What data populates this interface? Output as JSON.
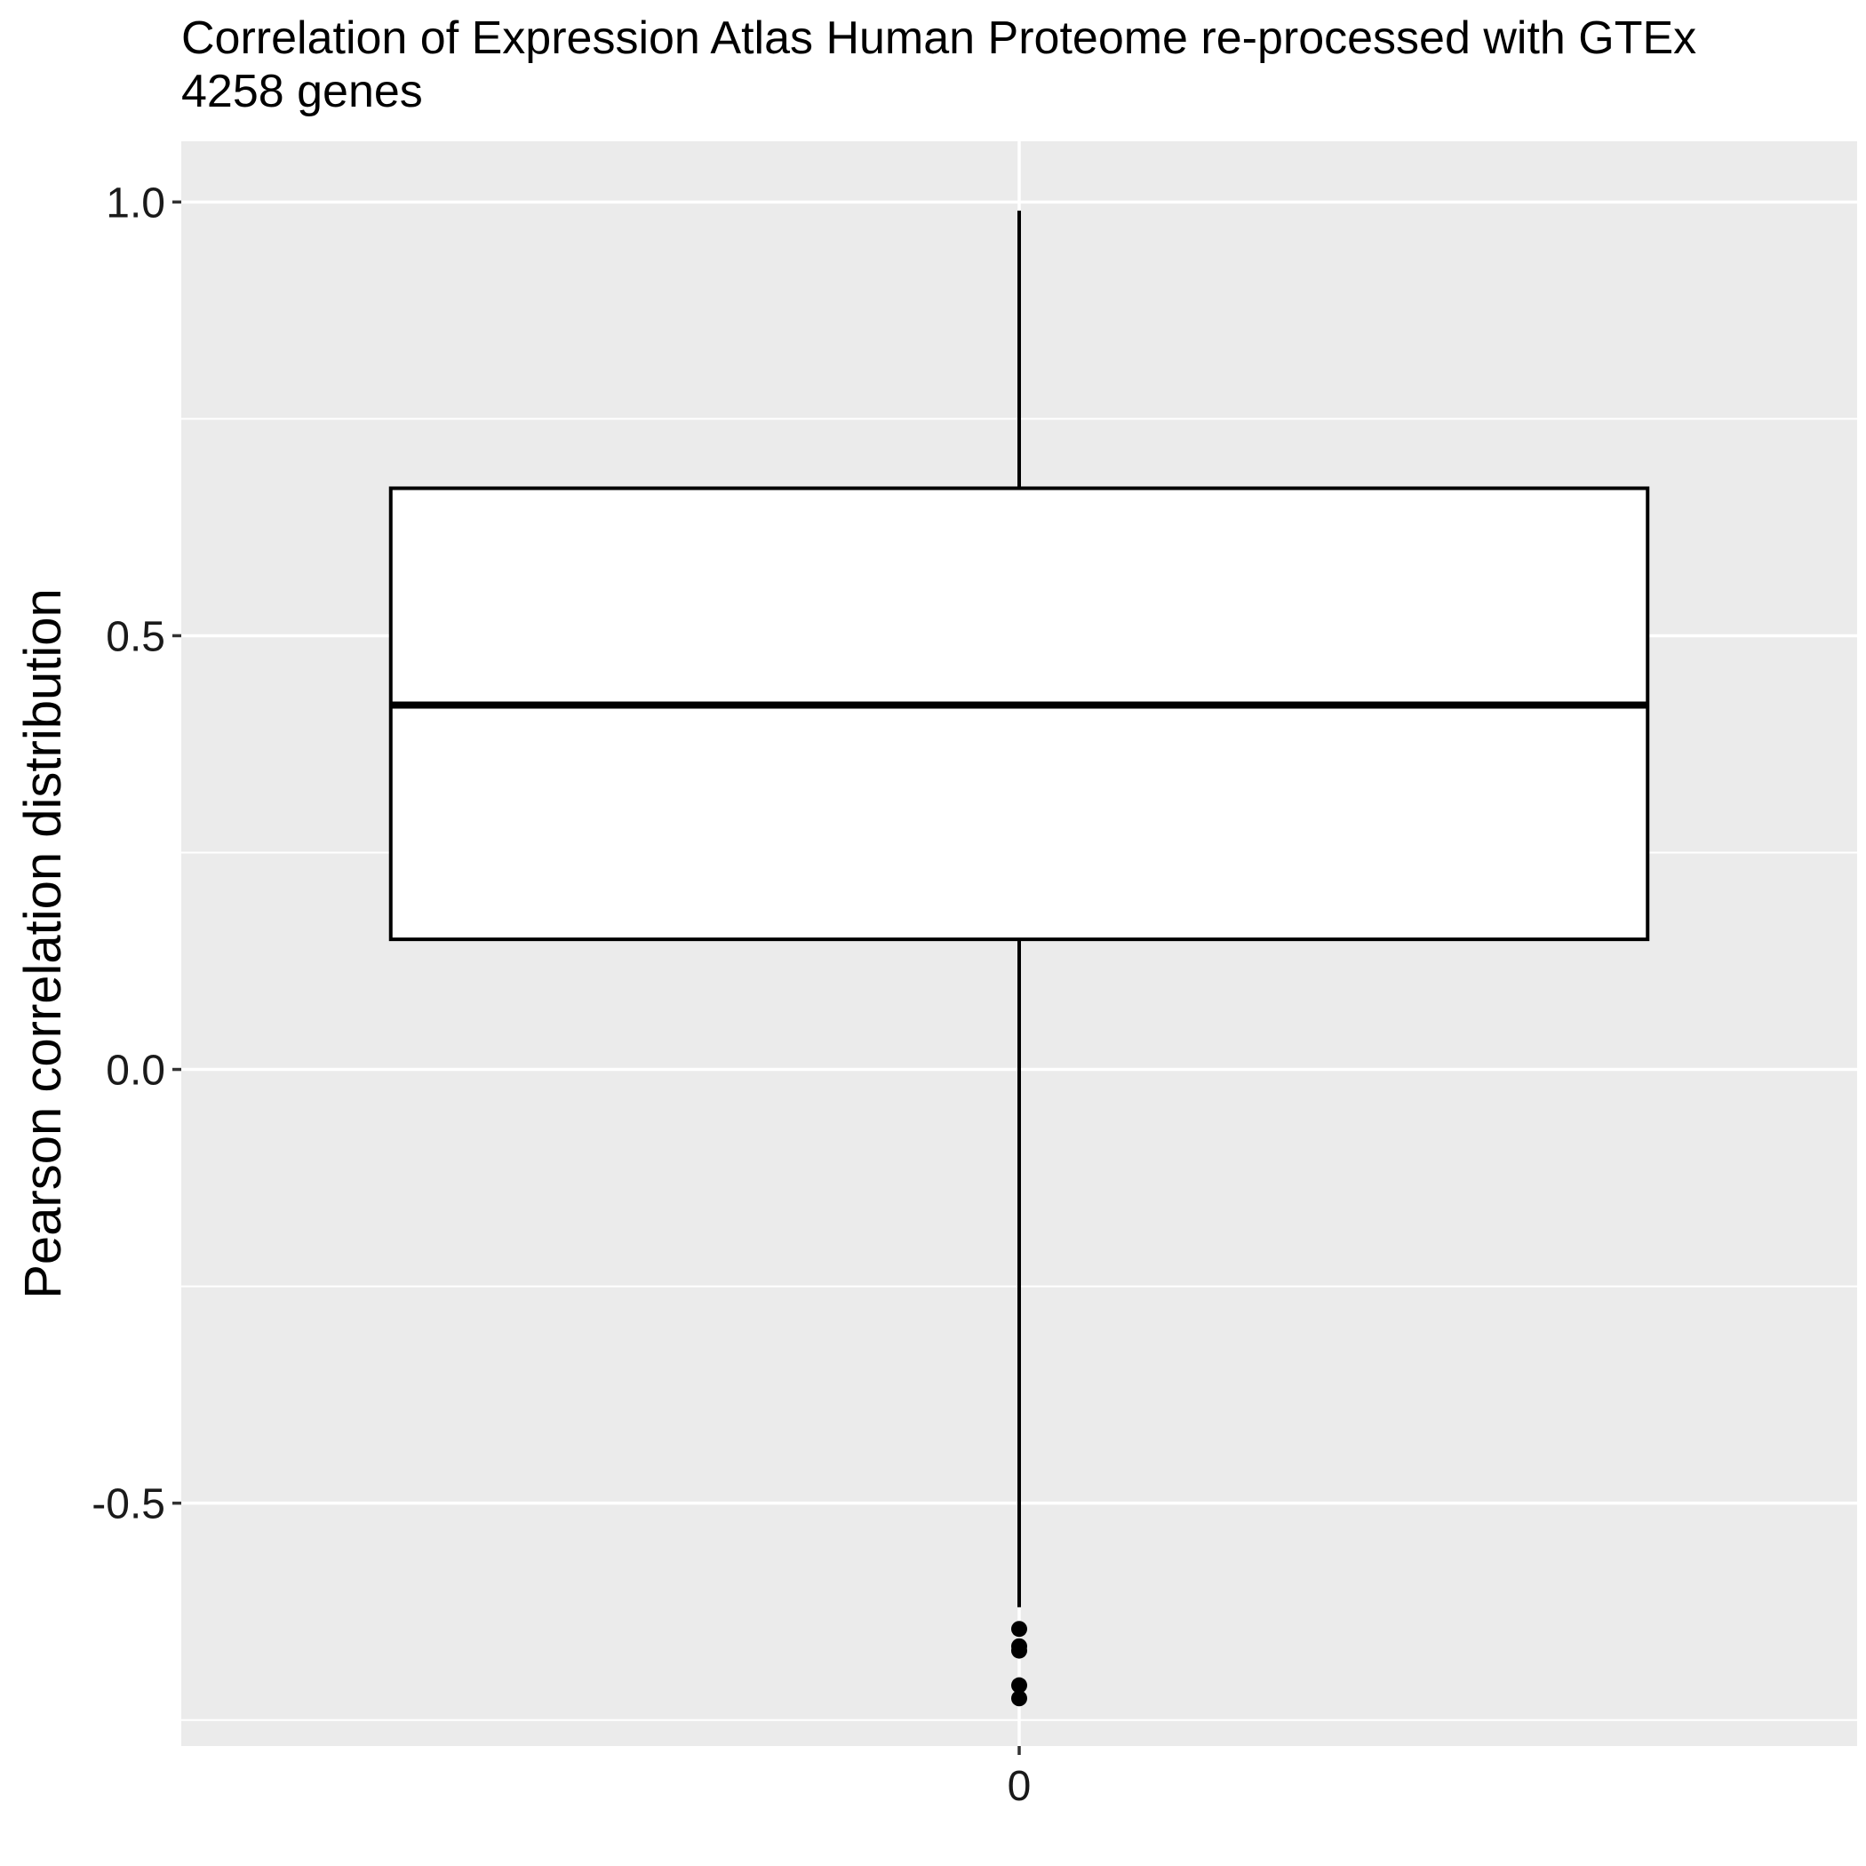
{
  "chart_data": {
    "type": "box",
    "title": "Correlation of Expression Atlas Human Proteome re-processed with GTEx",
    "subtitle": "4258 genes",
    "xlabel": "",
    "ylabel": "Pearson correlation distribution",
    "categories": [
      "0"
    ],
    "ylim": [
      -0.78,
      1.07
    ],
    "y_ticks": [
      -0.5,
      0.0,
      0.5,
      1.0
    ],
    "y_tick_labels": [
      "-0.5",
      "0.0",
      "0.5",
      "1.0"
    ],
    "grid": true,
    "legend": "none",
    "boxes": [
      {
        "category": "0",
        "whisker_low": -0.62,
        "q1": 0.15,
        "median": 0.42,
        "q3": 0.67,
        "whisker_high": 0.99,
        "outliers": [
          -0.645,
          -0.665,
          -0.67,
          -0.71,
          -0.725
        ]
      }
    ],
    "colors": {
      "panel": "#ebebeb",
      "grid": "#ffffff",
      "box_fill": "#ffffff",
      "box_stroke": "#000000"
    }
  }
}
